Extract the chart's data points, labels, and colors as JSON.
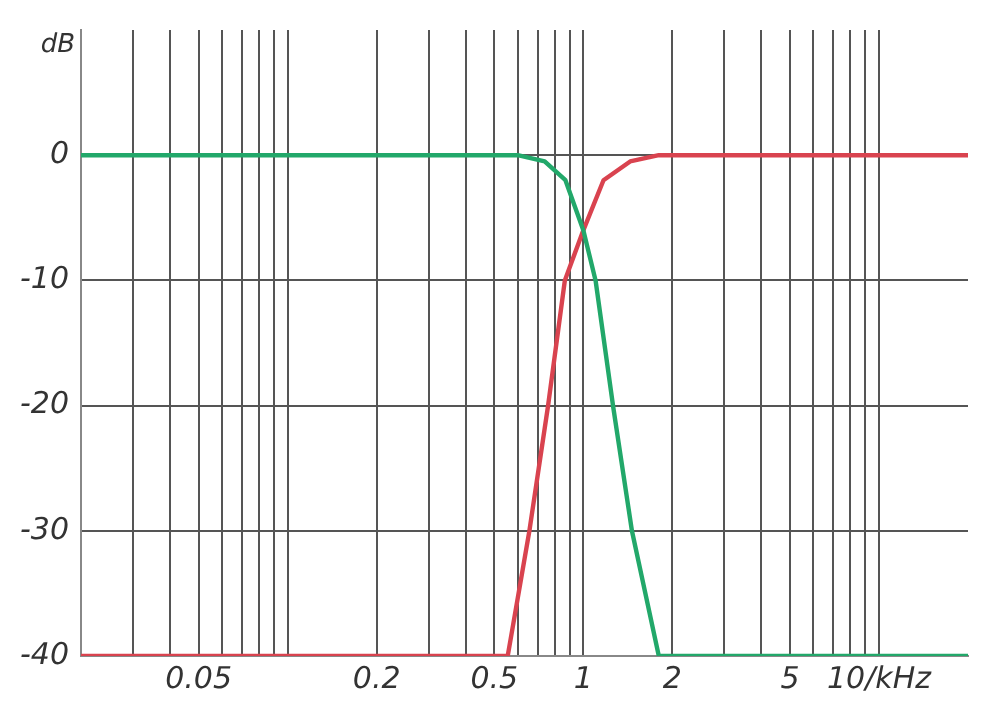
{
  "chart_data": {
    "type": "line",
    "ylabel": "dB",
    "xlim": [
      0.02,
      20
    ],
    "ylim": [
      -40,
      10
    ],
    "log": "x",
    "grid": true,
    "legend": false,
    "marker": "none",
    "line_style": "solid",
    "xticks": [
      {
        "value": 0.03,
        "label": null
      },
      {
        "value": 0.04,
        "label": null
      },
      0.05,
      {
        "value": 0.06,
        "label": null
      },
      {
        "value": 0.07,
        "label": null
      },
      {
        "value": 0.08,
        "label": null
      },
      {
        "value": 0.09,
        "label": null
      },
      {
        "value": 0.1,
        "label": null
      },
      0.2,
      {
        "value": 0.3,
        "label": null
      },
      {
        "value": 0.4,
        "label": null
      },
      0.5,
      {
        "value": 0.6,
        "label": null
      },
      {
        "value": 0.7,
        "label": null
      },
      {
        "value": 0.8,
        "label": null
      },
      {
        "value": 0.9,
        "label": null
      },
      1,
      2,
      {
        "value": 3,
        "label": null
      },
      {
        "value": 4,
        "label": null
      },
      5,
      {
        "value": 6,
        "label": null
      },
      {
        "value": 7,
        "label": null
      },
      {
        "value": 8,
        "label": null
      },
      {
        "value": 9,
        "label": null
      },
      {
        "value": 10,
        "label": "10/kHz"
      }
    ],
    "yticks": [
      -40,
      -30,
      -20,
      -10,
      0
    ],
    "series": [
      {
        "color": "#22a86a",
        "x": [
          0.02,
          0.6,
          0.74,
          0.87,
          1.0,
          1.1,
          1.26,
          1.46,
          1.8,
          20
        ],
        "values": [
          0,
          0,
          -0.5,
          -2,
          -6,
          -10,
          -20,
          -30,
          -40,
          -40
        ]
      },
      {
        "color": "#d9434f",
        "x": [
          0.02,
          0.555,
          0.657,
          0.76,
          0.866,
          1.0,
          1.17,
          1.44,
          1.8,
          20
        ],
        "values": [
          -40,
          -40,
          -30,
          -20,
          -10,
          -6,
          -2,
          -0.5,
          0,
          0
        ]
      }
    ]
  }
}
